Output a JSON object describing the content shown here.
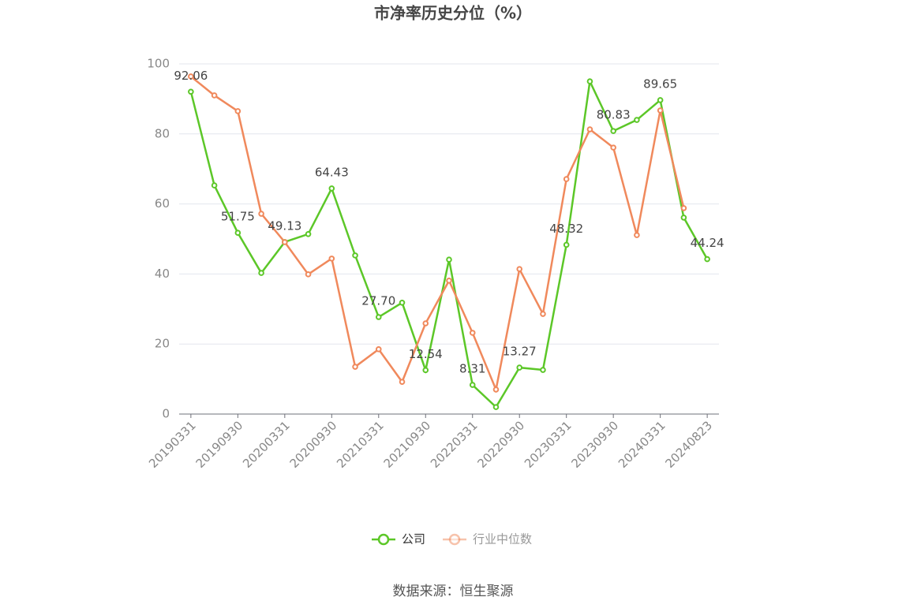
{
  "chart_data": {
    "type": "line",
    "title": "市净率历史分位（%）",
    "categories": [
      "20190331",
      null,
      "20190930",
      null,
      "20200331",
      null,
      "20200930",
      null,
      "20210331",
      null,
      "20210930",
      null,
      "20220331",
      null,
      "20220930",
      null,
      "20230331",
      null,
      "20230930",
      null,
      "20240331",
      null,
      "20240823"
    ],
    "series": [
      {
        "name": "公司",
        "color": "#5cc728",
        "values": [
          92.06,
          65.3,
          51.75,
          40.3,
          49.13,
          51.4,
          64.43,
          45.3,
          27.7,
          31.8,
          12.54,
          44.1,
          8.31,
          2.0,
          13.27,
          12.6,
          48.32,
          95.0,
          80.83,
          84.0,
          89.65,
          56.1,
          44.24
        ],
        "value_labels": [
          "92.06",
          null,
          "51.75",
          null,
          "49.13",
          null,
          "64.43",
          null,
          "27.70",
          null,
          "12.54",
          null,
          "8.31",
          null,
          "13.27",
          null,
          "48.32",
          null,
          "80.83",
          null,
          "89.65",
          null,
          "44.24"
        ]
      },
      {
        "name": "行业中位数",
        "color": "#f0895c",
        "values": [
          96.4,
          91.0,
          86.5,
          57.2,
          49.1,
          39.9,
          44.4,
          13.5,
          18.5,
          9.2,
          25.9,
          38.1,
          23.2,
          7.0,
          41.4,
          28.6,
          67.1,
          81.3,
          76.1,
          51.1,
          86.7,
          58.8,
          null
        ]
      }
    ],
    "ylim": [
      0,
      100
    ],
    "yticks": [
      0,
      20,
      40,
      60,
      80,
      100
    ],
    "grid": true,
    "legend": "bottom",
    "source": "数据来源：恒生聚源"
  }
}
